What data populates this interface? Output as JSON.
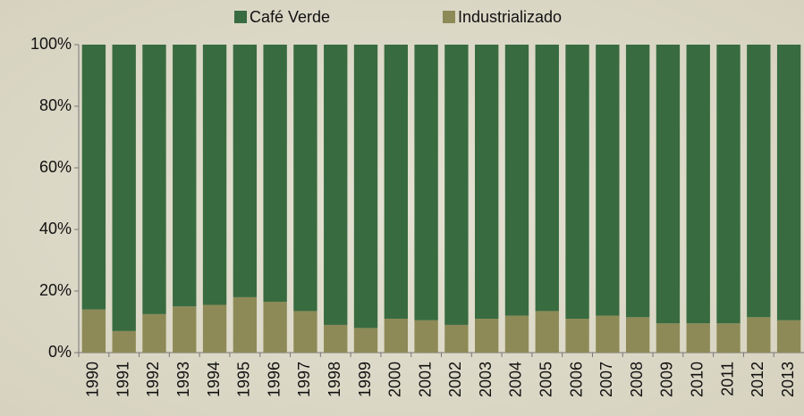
{
  "chart_data": {
    "type": "stacked_bar",
    "categories": [
      "1990",
      "1991",
      "1992",
      "1993",
      "1994",
      "1995",
      "1996",
      "1997",
      "1998",
      "1999",
      "2000",
      "2001",
      "2002",
      "2003",
      "2004",
      "2005",
      "2006",
      "2007",
      "2008",
      "2009",
      "2010",
      "2011",
      "2012",
      "2013"
    ],
    "series": [
      {
        "name": "Café Verde",
        "color": "#386b40",
        "values": [
          86,
          93,
          87.5,
          85,
          84.5,
          82,
          83.5,
          86.5,
          91,
          92,
          89,
          89.5,
          91,
          89,
          88,
          86.5,
          89,
          88,
          88.5,
          90.5,
          90.5,
          90.5,
          88.5,
          89.5
        ]
      },
      {
        "name": "Industrializado",
        "color": "#8e8a57",
        "values": [
          14,
          7,
          12.5,
          15,
          15.5,
          18,
          16.5,
          13.5,
          9,
          8,
          11,
          10.5,
          9,
          11,
          12,
          13.5,
          11,
          12,
          11.5,
          9.5,
          9.5,
          9.5,
          11.5,
          10.5
        ]
      }
    ],
    "ylim": [
      0,
      100
    ],
    "yticks": [
      {
        "value": 0,
        "label": "0%"
      },
      {
        "value": 20,
        "label": "20%"
      },
      {
        "value": 40,
        "label": "40%"
      },
      {
        "value": 60,
        "label": "60%"
      },
      {
        "value": 80,
        "label": "80%"
      },
      {
        "value": 100,
        "label": "100%"
      }
    ],
    "legend": "top",
    "grid": false
  }
}
